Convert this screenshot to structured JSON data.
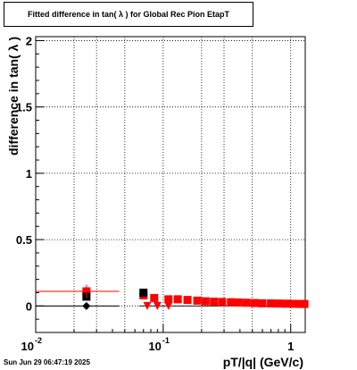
{
  "chart_data": {
    "type": "scatter",
    "title": "Fitted difference in tan( λ ) for Global Rec Pion EtapT",
    "xlabel": "pT/|q| (GeV/c)",
    "ylabel": "difference in tan( λ )",
    "xscale": "log",
    "xlim": [
      0.01,
      1.3
    ],
    "ylim": [
      -0.2,
      2.03
    ],
    "grid": true,
    "x_tick_labels": [
      "10",
      "-2",
      "10",
      "-1",
      "1"
    ],
    "y_tick_labels": [
      "0",
      "0.5",
      "1",
      "1.5",
      "2"
    ],
    "series": [
      {
        "color": "#ff0000",
        "marker": "square",
        "points": [
          {
            "x": 0.025,
            "y": 0.11
          },
          {
            "x": 0.07,
            "y": 0.08
          },
          {
            "x": 0.085,
            "y": 0.06
          },
          {
            "x": 0.11,
            "y": 0.05
          },
          {
            "x": 0.13,
            "y": 0.05
          },
          {
            "x": 0.155,
            "y": 0.045
          },
          {
            "x": 0.185,
            "y": 0.04
          },
          {
            "x": 0.215,
            "y": 0.035
          },
          {
            "x": 0.25,
            "y": 0.032
          },
          {
            "x": 0.29,
            "y": 0.03
          },
          {
            "x": 0.34,
            "y": 0.028
          },
          {
            "x": 0.39,
            "y": 0.026
          },
          {
            "x": 0.45,
            "y": 0.024
          },
          {
            "x": 0.52,
            "y": 0.022
          },
          {
            "x": 0.6,
            "y": 0.02
          },
          {
            "x": 0.7,
            "y": 0.019
          },
          {
            "x": 0.8,
            "y": 0.018
          },
          {
            "x": 0.92,
            "y": 0.017
          },
          {
            "x": 1.05,
            "y": 0.016
          },
          {
            "x": 1.2,
            "y": 0.015
          },
          {
            "x": 1.28,
            "y": 0.015
          }
        ]
      },
      {
        "color": "#ff0000",
        "marker": "triangle-down",
        "points": [
          {
            "x": 0.075,
            "y": 0.0
          },
          {
            "x": 0.09,
            "y": 0.0
          },
          {
            "x": 0.11,
            "y": 0.0
          }
        ]
      },
      {
        "color": "#000000",
        "marker": "square",
        "points": [
          {
            "x": 0.025,
            "y": 0.07
          },
          {
            "x": 0.07,
            "y": 0.1
          }
        ]
      },
      {
        "color": "#000000",
        "marker": "diamond",
        "points": [
          {
            "x": 0.025,
            "y": 0.0
          }
        ]
      }
    ]
  },
  "footer": {
    "datestamp": "Sun Jun 29 06:47:19 2025"
  }
}
